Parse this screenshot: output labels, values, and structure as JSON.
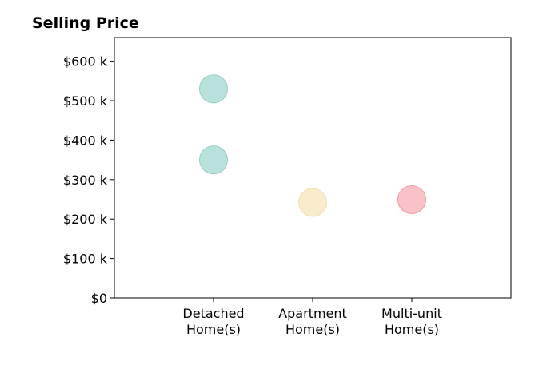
{
  "chart_data": {
    "type": "scatter",
    "title": "Selling Price",
    "xlabel": "",
    "ylabel": "",
    "categories": [
      [
        "Detached",
        "Home(s)"
      ],
      [
        "Apartment",
        "Home(s)"
      ],
      [
        "Multi-unit",
        "Home(s)"
      ]
    ],
    "xlim": [
      -1,
      3
    ],
    "ylim": [
      0,
      660000
    ],
    "yticks": [
      0,
      100000,
      200000,
      300000,
      400000,
      500000,
      600000
    ],
    "ytick_labels": [
      "$0",
      "$100 k",
      "$200 k",
      "$300 k",
      "$400 k",
      "$500 k",
      "$600 k"
    ],
    "grid": false,
    "points": [
      {
        "category_index": 0,
        "y": 530000,
        "color": "#8ccfc6"
      },
      {
        "category_index": 0,
        "y": 350000,
        "color": "#8ccfc6"
      },
      {
        "category_index": 1,
        "y": 242000,
        "color": "#f5dfaa"
      },
      {
        "category_index": 2,
        "y": 249000,
        "color": "#f59aa3"
      }
    ]
  }
}
